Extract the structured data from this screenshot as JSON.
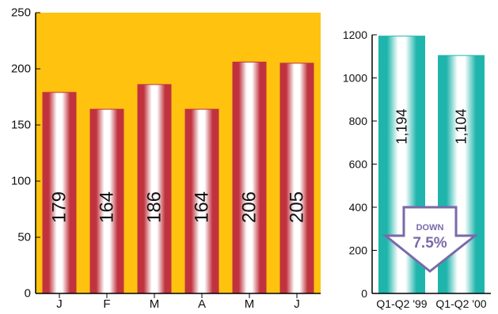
{
  "chart_data": [
    {
      "type": "bar",
      "categories": [
        "J",
        "F",
        "M",
        "A",
        "M",
        "J"
      ],
      "values": [
        179,
        164,
        186,
        164,
        206,
        205
      ],
      "value_labels": [
        "179",
        "164",
        "186",
        "164",
        "206",
        "205"
      ],
      "ylim": [
        0,
        250
      ],
      "yticks": [
        0,
        50,
        100,
        150,
        200,
        250
      ],
      "ytick_labels": [
        "0",
        "50",
        "100",
        "150",
        "200",
        "250"
      ],
      "title": "",
      "xlabel": "",
      "ylabel": "",
      "grid": false,
      "colors": {
        "plot_background": "#ffc20e",
        "bar_dark": "#c0333e",
        "bar_light": "#ffffff"
      }
    },
    {
      "type": "bar",
      "categories": [
        "Q1-Q2 '99",
        "Q1-Q2 '00"
      ],
      "values": [
        1194,
        1104
      ],
      "value_labels": [
        "1,194",
        "1,104"
      ],
      "ylim": [
        0,
        1200
      ],
      "yticks": [
        0,
        200,
        400,
        600,
        800,
        1000,
        1200
      ],
      "ytick_labels": [
        "0",
        "200",
        "400",
        "600",
        "800",
        "1000",
        "1200"
      ],
      "title": "",
      "xlabel": "",
      "ylabel": "",
      "grid": false,
      "colors": {
        "plot_background": "#ffffff",
        "bar_dark": "#1fb5ac",
        "bar_light": "#ffffff"
      },
      "annotation": {
        "label": "DOWN",
        "value": "7.5%",
        "shape": "down-arrow",
        "colors": {
          "fill": "#ffffff",
          "stroke": "#7a6aa8",
          "text": "#7a6aa8"
        }
      }
    }
  ]
}
